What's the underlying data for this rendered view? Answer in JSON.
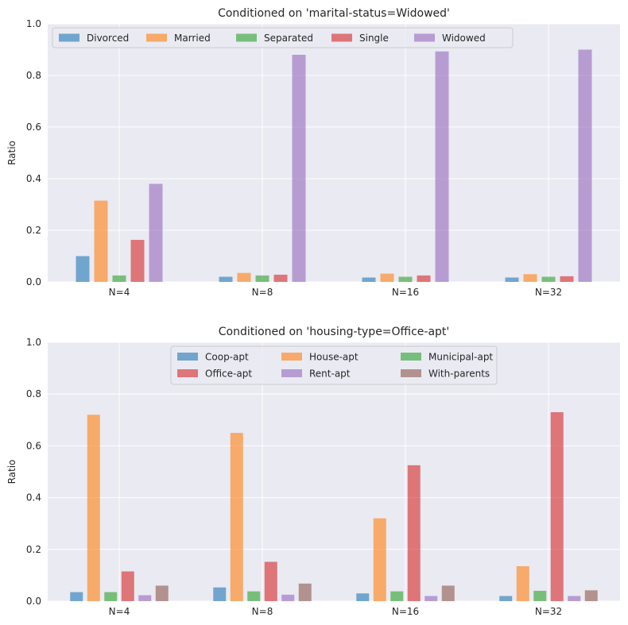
{
  "chart_data": [
    {
      "type": "bar",
      "title": "Conditioned on 'marital-status=Widowed'",
      "xlabel": "",
      "ylabel": "Ratio",
      "ylim": [
        0,
        1.0
      ],
      "yticks": [
        "0.0",
        "0.2",
        "0.4",
        "0.6",
        "0.8",
        "1.0"
      ],
      "grid": true,
      "legend_position": "top-left",
      "legend_columns": 5,
      "categories": [
        "N=4",
        "N=8",
        "N=16",
        "N=32"
      ],
      "series": [
        {
          "name": "Divorced",
          "color": "#1f77b4",
          "values": [
            0.1,
            0.02,
            0.017,
            0.017
          ]
        },
        {
          "name": "Married",
          "color": "#ff7f0e",
          "values": [
            0.315,
            0.035,
            0.032,
            0.03
          ]
        },
        {
          "name": "Separated",
          "color": "#2ca02c",
          "values": [
            0.025,
            0.025,
            0.02,
            0.02
          ]
        },
        {
          "name": "Single",
          "color": "#d62728",
          "values": [
            0.163,
            0.028,
            0.025,
            0.022
          ]
        },
        {
          "name": "Widowed",
          "color": "#9467bd",
          "values": [
            0.38,
            0.88,
            0.893,
            0.9
          ]
        }
      ]
    },
    {
      "type": "bar",
      "title": "Conditioned on 'housing-type=Office-apt'",
      "xlabel": "",
      "ylabel": "Ratio",
      "ylim": [
        0,
        1.0
      ],
      "yticks": [
        "0.0",
        "0.2",
        "0.4",
        "0.6",
        "0.8",
        "1.0"
      ],
      "grid": true,
      "legend_position": "top-center",
      "legend_columns": 3,
      "categories": [
        "N=4",
        "N=8",
        "N=16",
        "N=32"
      ],
      "series": [
        {
          "name": "Coop-apt",
          "color": "#1f77b4",
          "values": [
            0.035,
            0.053,
            0.03,
            0.02
          ]
        },
        {
          "name": "House-apt",
          "color": "#ff7f0e",
          "values": [
            0.72,
            0.65,
            0.32,
            0.135
          ]
        },
        {
          "name": "Municipal-apt",
          "color": "#2ca02c",
          "values": [
            0.035,
            0.038,
            0.038,
            0.04
          ]
        },
        {
          "name": "Office-apt",
          "color": "#d62728",
          "values": [
            0.115,
            0.152,
            0.525,
            0.73
          ]
        },
        {
          "name": "Rent-apt",
          "color": "#9467bd",
          "values": [
            0.023,
            0.025,
            0.02,
            0.02
          ]
        },
        {
          "name": "With-parents",
          "color": "#8c564b",
          "values": [
            0.06,
            0.068,
            0.06,
            0.042
          ]
        }
      ]
    }
  ]
}
